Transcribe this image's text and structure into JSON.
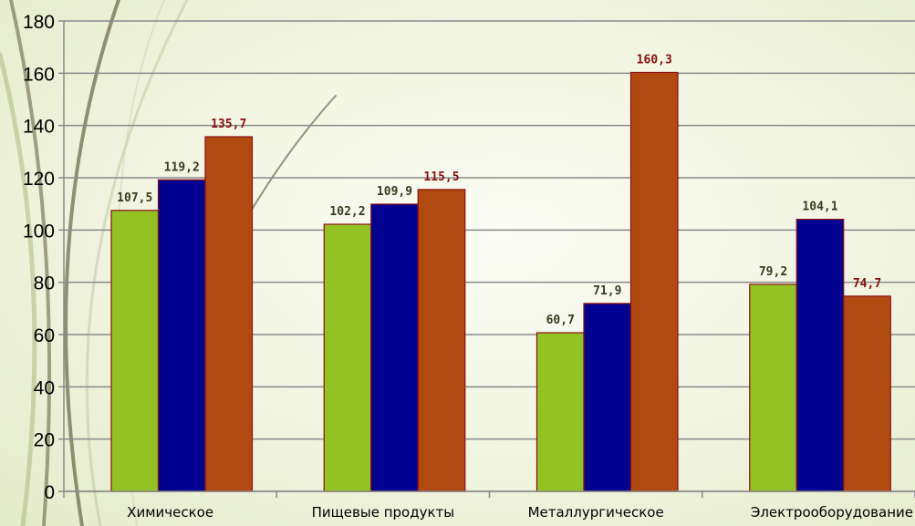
{
  "chart_data": {
    "type": "bar",
    "title": "",
    "xlabel": "",
    "ylabel": "",
    "ylim": [
      0,
      180
    ],
    "yticks": [
      0,
      20,
      40,
      60,
      80,
      100,
      120,
      140,
      160,
      180
    ],
    "grid": true,
    "legend": "none",
    "categories": [
      "Химическое",
      "Пищевые продукты",
      "Металлургическое",
      "Электрооборудование"
    ],
    "series": [
      {
        "values": [
          107.5,
          102.2,
          60.7,
          79.2
        ],
        "labels": [
          "107,5",
          "102,2",
          "60,7",
          "79,2"
        ],
        "color": "#93c225",
        "label_color": "#3b3b1e"
      },
      {
        "values": [
          119.2,
          109.9,
          71.9,
          104.1
        ],
        "labels": [
          "119,2",
          "109,9",
          "71,9",
          "104,1"
        ],
        "color": "#000090",
        "label_color": "#3b3b1e"
      },
      {
        "values": [
          135.7,
          115.5,
          160.3,
          74.7
        ],
        "labels": [
          "135,7",
          "115,5",
          "160,3",
          "74,7"
        ],
        "color": "#b04a10",
        "label_color": "#8b0f10"
      }
    ]
  }
}
